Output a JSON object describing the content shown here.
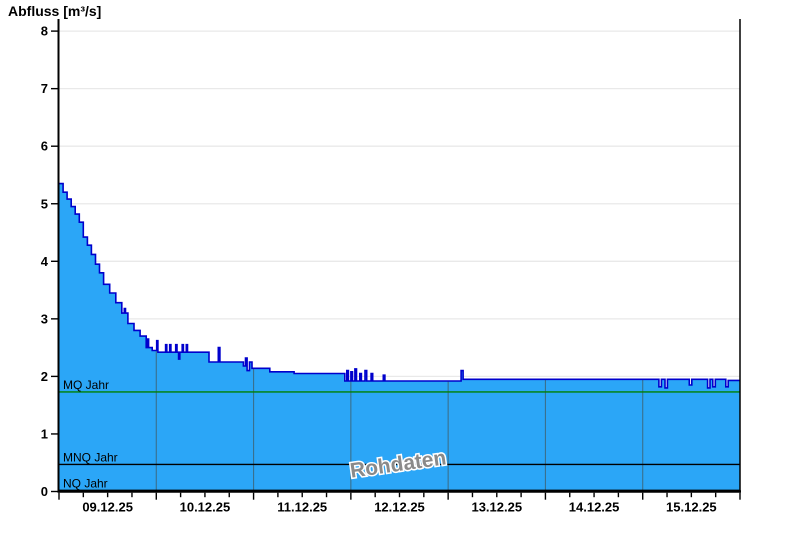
{
  "title": "Abfluss [m³/s]",
  "watermark": {
    "text": "Rohdaten"
  },
  "colors": {
    "area_fill": "#2ba6f7",
    "area_stroke": "#0000cc",
    "grid_horizontal": "#e9e9e9",
    "grid_vertical_over_area": "#3a6f8c",
    "axis": "#000000",
    "mq_line": "#008000",
    "mnq_line": "#000000",
    "nq_line": "#000000"
  },
  "reference_lines": [
    {
      "label": "MQ Jahr",
      "value": 1.73,
      "color": "#008000"
    },
    {
      "label": "MNQ Jahr",
      "value": 0.47,
      "color": "#000000"
    },
    {
      "label": "NQ Jahr",
      "value": 0.02,
      "color": "#000000"
    }
  ],
  "chart_data": {
    "type": "area",
    "title": "Abfluss [m³/s]",
    "ylabel": "Abfluss [m³/s]",
    "ylim": [
      0,
      8
    ],
    "yticks": [
      0,
      1,
      2,
      3,
      4,
      5,
      6,
      7,
      8
    ],
    "grid": "horizontal-light, vertical day lines visible only over filled area",
    "legend": "none",
    "x_axis": {
      "start": "09.12.25 00:00",
      "end": "16.12.25 00:00",
      "total_hours": 168,
      "day_labels": [
        "09.12.25",
        "10.12.25",
        "11.12.25",
        "12.12.25",
        "13.12.25",
        "14.12.25",
        "15.12.25"
      ],
      "minor_tick_hours": 6,
      "major_tick_hours": 24
    },
    "annotations": [
      "MQ Jahr = 1.73 m³/s",
      "MNQ Jahr = 0.47 m³/s",
      "NQ Jahr ≈ 0 m³/s",
      "Rohdaten watermark"
    ],
    "series": [
      {
        "name": "Abfluss Rohdaten",
        "unit": "m³/s",
        "step": "after",
        "points_hours_value": [
          [
            0,
            5.35
          ],
          [
            1,
            5.2
          ],
          [
            2,
            5.08
          ],
          [
            3,
            4.95
          ],
          [
            4,
            4.82
          ],
          [
            5,
            4.68
          ],
          [
            6,
            4.42
          ],
          [
            7,
            4.28
          ],
          [
            8,
            4.12
          ],
          [
            9,
            3.95
          ],
          [
            10,
            3.8
          ],
          [
            11,
            3.6
          ],
          [
            12.5,
            3.45
          ],
          [
            14,
            3.28
          ],
          [
            15.5,
            3.1
          ],
          [
            16.1,
            3.18
          ],
          [
            16.4,
            3.1
          ],
          [
            17,
            2.92
          ],
          [
            18.5,
            2.8
          ],
          [
            20,
            2.7
          ],
          [
            21.5,
            2.5
          ],
          [
            21.8,
            2.65
          ],
          [
            22.1,
            2.5
          ],
          [
            23,
            2.45
          ],
          [
            24.1,
            2.62
          ],
          [
            24.4,
            2.42
          ],
          [
            26.3,
            2.55
          ],
          [
            26.6,
            2.42
          ],
          [
            27.3,
            2.55
          ],
          [
            27.6,
            2.42
          ],
          [
            28.8,
            2.55
          ],
          [
            29.1,
            2.42
          ],
          [
            29.5,
            2.3
          ],
          [
            29.8,
            2.42
          ],
          [
            30.4,
            2.55
          ],
          [
            30.7,
            2.42
          ],
          [
            31.4,
            2.55
          ],
          [
            31.7,
            2.42
          ],
          [
            37,
            2.25
          ],
          [
            39.3,
            2.5
          ],
          [
            39.7,
            2.25
          ],
          [
            45.5,
            2.18
          ],
          [
            46,
            2.32
          ],
          [
            46.4,
            2.1
          ],
          [
            47,
            2.25
          ],
          [
            47.6,
            2.14
          ],
          [
            52,
            2.08
          ],
          [
            58,
            2.05
          ],
          [
            70.5,
            1.92
          ],
          [
            71,
            2.1
          ],
          [
            71.4,
            1.92
          ],
          [
            72,
            2.08
          ],
          [
            72.4,
            1.92
          ],
          [
            73,
            2.13
          ],
          [
            73.4,
            1.92
          ],
          [
            74.2,
            2.05
          ],
          [
            74.6,
            1.92
          ],
          [
            75.5,
            2.1
          ],
          [
            75.9,
            1.92
          ],
          [
            77,
            2.05
          ],
          [
            77.4,
            1.92
          ],
          [
            80,
            2.02
          ],
          [
            80.4,
            1.92
          ],
          [
            99.2,
            2.1
          ],
          [
            99.7,
            1.95
          ],
          [
            148,
            1.82
          ],
          [
            148.6,
            1.95
          ],
          [
            149.5,
            1.8
          ],
          [
            150.1,
            1.95
          ],
          [
            155.5,
            1.85
          ],
          [
            156.1,
            1.95
          ],
          [
            160,
            1.8
          ],
          [
            160.6,
            1.95
          ],
          [
            161.3,
            1.82
          ],
          [
            161.9,
            1.95
          ],
          [
            164.5,
            1.82
          ],
          [
            165.1,
            1.93
          ],
          [
            168,
            1.93
          ]
        ]
      }
    ]
  }
}
